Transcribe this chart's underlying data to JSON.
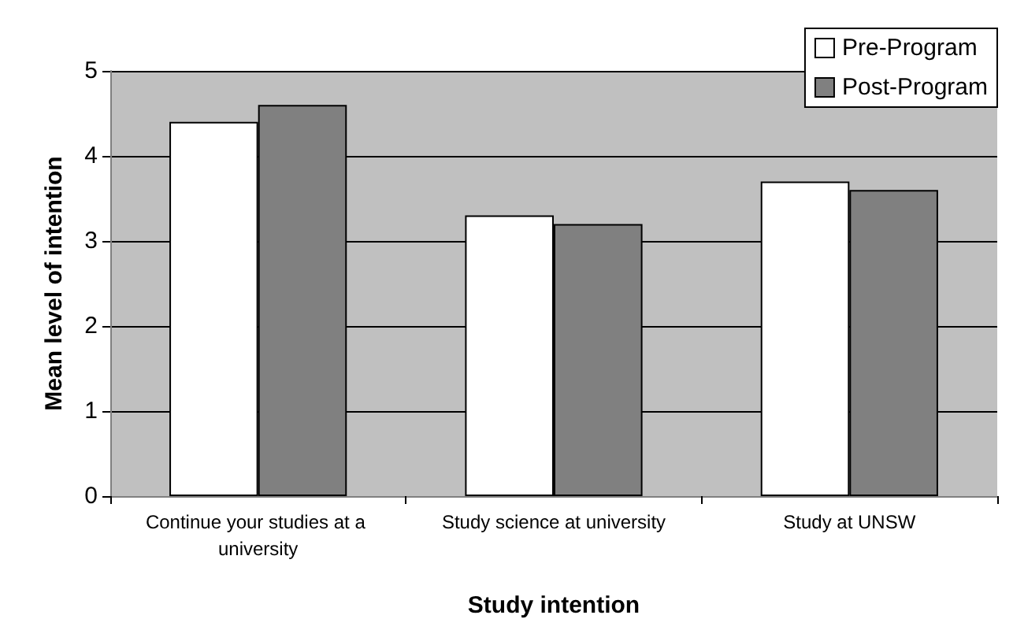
{
  "chart_data": {
    "type": "bar",
    "xlabel": "Study intention",
    "ylabel": "Mean level of intention",
    "categories": [
      "Continue your studies at a university",
      "Study science at university",
      "Study at UNSW"
    ],
    "series": [
      {
        "name": "Pre-Program",
        "color": "#ffffff",
        "values": [
          4.4,
          3.3,
          3.7
        ]
      },
      {
        "name": "Post-Program",
        "color": "#808080",
        "values": [
          4.6,
          3.2,
          3.6
        ]
      }
    ],
    "ylim": [
      0,
      5
    ],
    "yticks": [
      0,
      1,
      2,
      3,
      4,
      5
    ],
    "grid": "y",
    "legend": "top right"
  }
}
